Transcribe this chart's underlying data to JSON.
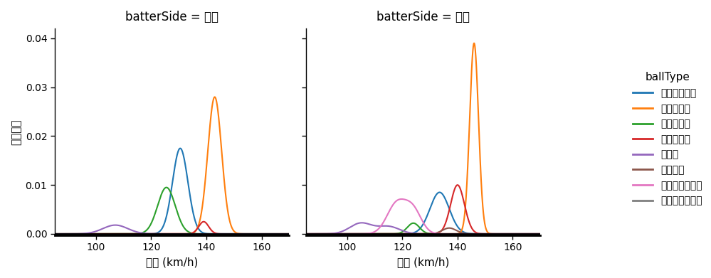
{
  "title_left": "batterSide = 左打",
  "title_right": "batterSide = 右打",
  "xlabel": "球速 (km/h)",
  "ylabel": "確率密度",
  "legend_title": "ballType",
  "xlim": [
    85,
    170
  ],
  "ylim": [
    -0.0003,
    0.042
  ],
  "yticks": [
    0.0,
    0.01,
    0.02,
    0.03,
    0.04
  ],
  "xticks": [
    100,
    120,
    140,
    160
  ],
  "ball_types": [
    "カットボール",
    "ストレート",
    "スライダー",
    "ツーシーム",
    "カーブ",
    "フォーク",
    "チェンジアップ",
    "ナックルカーブ"
  ],
  "colors": [
    "#1f77b4",
    "#ff7f0e",
    "#2ca02c",
    "#d62728",
    "#9467bd",
    "#8c564b",
    "#e377c2",
    "#7f7f7f"
  ],
  "left_params": {
    "カットボール": [
      {
        "mean": 130.5,
        "std": 2.8,
        "peak": 0.0175
      }
    ],
    "ストレート": [
      {
        "mean": 143.0,
        "std": 2.5,
        "peak": 0.028
      }
    ],
    "スライダー": [
      {
        "mean": 125.5,
        "std": 3.2,
        "peak": 0.0095
      }
    ],
    "ツーシーム": [
      {
        "mean": 139.0,
        "std": 1.8,
        "peak": 0.0025
      }
    ],
    "カーブ": [
      {
        "mean": 107.0,
        "std": 4.5,
        "peak": 0.0018
      }
    ],
    "フォーク": null,
    "チェンジアップ": null,
    "ナックルカーブ": null
  },
  "right_params": {
    "カットボール": [
      {
        "mean": 133.5,
        "std": 3.5,
        "peak": 0.0085
      }
    ],
    "ストレート": [
      {
        "mean": 146.0,
        "std": 1.6,
        "peak": 0.039
      }
    ],
    "スライダー": [
      {
        "mean": 124.0,
        "std": 2.2,
        "peak": 0.0022
      }
    ],
    "ツーシーム": [
      {
        "mean": 140.0,
        "std": 2.5,
        "peak": 0.01
      }
    ],
    "カーブ": [
      {
        "mean": 105.0,
        "std": 4.0,
        "peak": 0.0022
      },
      {
        "mean": 115.0,
        "std": 4.0,
        "peak": 0.0015
      }
    ],
    "フォーク": [
      {
        "mean": 137.0,
        "std": 2.5,
        "peak": 0.0012
      }
    ],
    "チェンジアップ": [
      {
        "mean": 118.0,
        "std": 3.5,
        "peak": 0.0062
      },
      {
        "mean": 124.0,
        "std": 3.0,
        "peak": 0.0045
      }
    ],
    "ナックルカーブ": null
  },
  "background_color": "#ffffff"
}
